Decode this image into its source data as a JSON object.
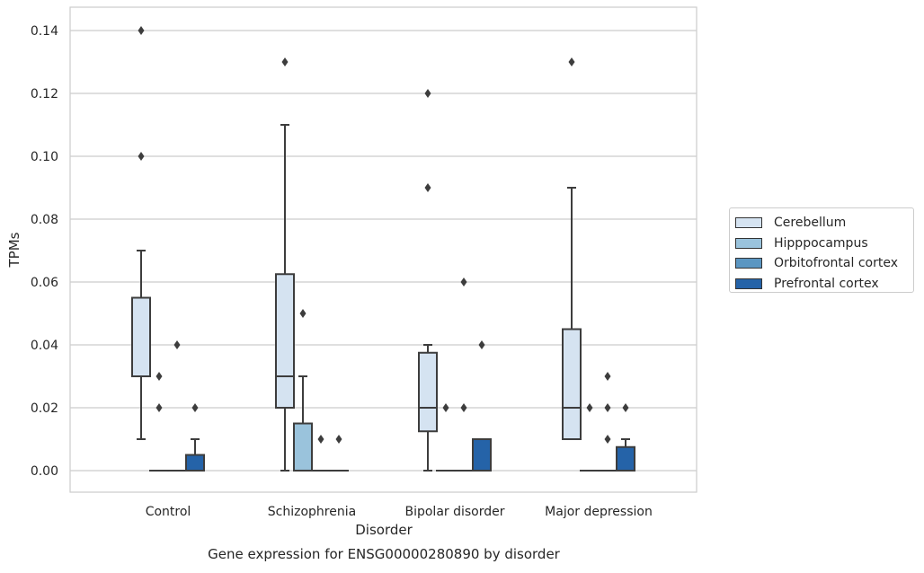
{
  "chart_data": {
    "type": "box",
    "title": "Gene expression for ENSG00000280890 by disorder",
    "xlabel": "Disorder",
    "ylabel": "TPMs",
    "ylim": [
      -0.0068,
      0.147
    ],
    "yticks": [
      "0.00",
      "0.02",
      "0.04",
      "0.06",
      "0.08",
      "0.10",
      "0.12",
      "0.14"
    ],
    "ytick_values": [
      0,
      0.02,
      0.04,
      0.06,
      0.08,
      0.1,
      0.12,
      0.14
    ],
    "grid": true,
    "legend_position": "right",
    "categories": [
      "Control",
      "Schizophrenia",
      "Bipolar disorder",
      "Major depression"
    ],
    "series": [
      {
        "name": "Cerebellum",
        "color": "#d5e3f1",
        "boxes": [
          {
            "whisker_low": 0.01,
            "q1": 0.03,
            "median": 0.03,
            "q3": 0.055,
            "whisker_high": 0.07,
            "outliers": [
              0.1,
              0.14
            ]
          },
          {
            "whisker_low": 0.0,
            "q1": 0.02,
            "median": 0.03,
            "q3": 0.0625,
            "whisker_high": 0.11,
            "outliers": [
              0.13
            ]
          },
          {
            "whisker_low": 0.0,
            "q1": 0.0125,
            "median": 0.02,
            "q3": 0.0375,
            "whisker_high": 0.04,
            "outliers": [
              0.09,
              0.12
            ]
          },
          {
            "whisker_low": 0.01,
            "q1": 0.01,
            "median": 0.02,
            "q3": 0.045,
            "whisker_high": 0.09,
            "outliers": [
              0.13
            ]
          }
        ]
      },
      {
        "name": "Hipppocampus",
        "color": "#9ac3dc",
        "boxes": [
          {
            "whisker_low": 0.0,
            "q1": 0.0,
            "median": 0.0,
            "q3": 0.0,
            "whisker_high": 0.0,
            "outliers": [
              0.02,
              0.03
            ]
          },
          {
            "whisker_low": 0.0,
            "q1": 0.0,
            "median": 0.0,
            "q3": 0.015,
            "whisker_high": 0.03,
            "outliers": [
              0.05
            ]
          },
          {
            "whisker_low": 0.0,
            "q1": 0.0,
            "median": 0.0,
            "q3": 0.0,
            "whisker_high": 0.0,
            "outliers": [
              0.02
            ]
          },
          {
            "whisker_low": 0.0,
            "q1": 0.0,
            "median": 0.0,
            "q3": 0.0,
            "whisker_high": 0.0,
            "outliers": [
              0.02
            ]
          }
        ]
      },
      {
        "name": "Orbitofrontal cortex",
        "color": "#5b96c2",
        "boxes": [
          {
            "whisker_low": 0.0,
            "q1": 0.0,
            "median": 0.0,
            "q3": 0.0,
            "whisker_high": 0.0,
            "outliers": [
              0.04
            ]
          },
          {
            "whisker_low": 0.0,
            "q1": 0.0,
            "median": 0.0,
            "q3": 0.0,
            "whisker_high": 0.0,
            "outliers": [
              0.01
            ]
          },
          {
            "whisker_low": 0.0,
            "q1": 0.0,
            "median": 0.0,
            "q3": 0.0,
            "whisker_high": 0.0,
            "outliers": [
              0.02,
              0.06
            ]
          },
          {
            "whisker_low": 0.0,
            "q1": 0.0,
            "median": 0.0,
            "q3": 0.0,
            "whisker_high": 0.0,
            "outliers": [
              0.01,
              0.02,
              0.03
            ]
          }
        ]
      },
      {
        "name": "Prefrontal cortex",
        "color": "#2563a8",
        "boxes": [
          {
            "whisker_low": 0.0,
            "q1": 0.0,
            "median": 0.0,
            "q3": 0.005,
            "whisker_high": 0.01,
            "outliers": [
              0.02
            ]
          },
          {
            "whisker_low": 0.0,
            "q1": 0.0,
            "median": 0.0,
            "q3": 0.0,
            "whisker_high": 0.0,
            "outliers": [
              0.01
            ]
          },
          {
            "whisker_low": 0.0,
            "q1": 0.0,
            "median": 0.0,
            "q3": 0.01,
            "whisker_high": 0.01,
            "outliers": [
              0.04
            ]
          },
          {
            "whisker_low": 0.0,
            "q1": 0.0,
            "median": 0.0,
            "q3": 0.0075,
            "whisker_high": 0.01,
            "outliers": [
              0.02
            ]
          }
        ]
      }
    ]
  }
}
